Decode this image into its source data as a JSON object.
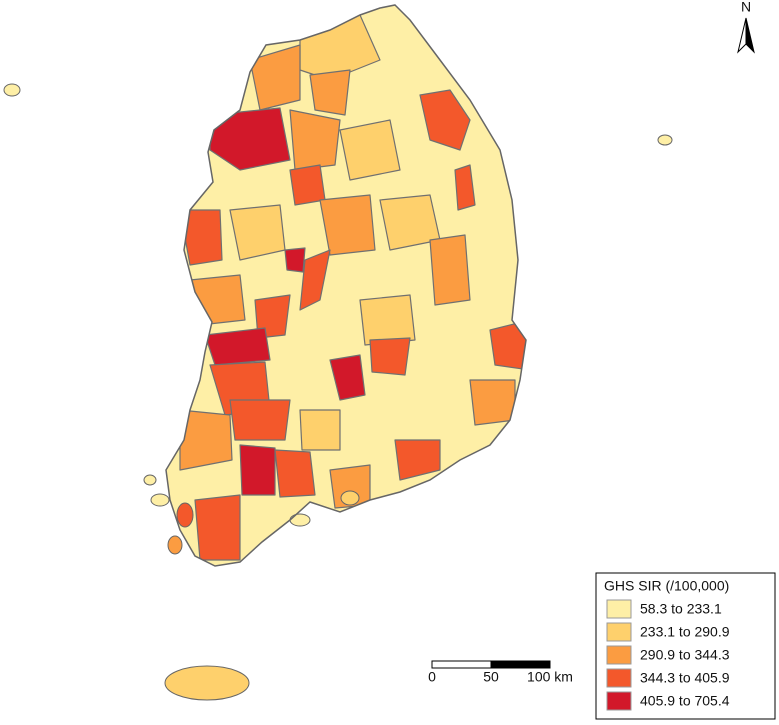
{
  "north_label": "N",
  "legend": {
    "title": "GHS SIR (/100,000)",
    "classes": [
      {
        "label": "58.3 to 233.1",
        "color": "#feefa6"
      },
      {
        "label": "233.1 to 290.9",
        "color": "#fed06c"
      },
      {
        "label": "290.9 to 344.3",
        "color": "#fb9c41"
      },
      {
        "label": "344.3 to 405.9",
        "color": "#f3582b"
      },
      {
        "label": "405.9 to 705.4",
        "color": "#d2182a"
      }
    ]
  },
  "scale_bar": {
    "labels": [
      "0",
      "50",
      "100 km"
    ]
  }
}
